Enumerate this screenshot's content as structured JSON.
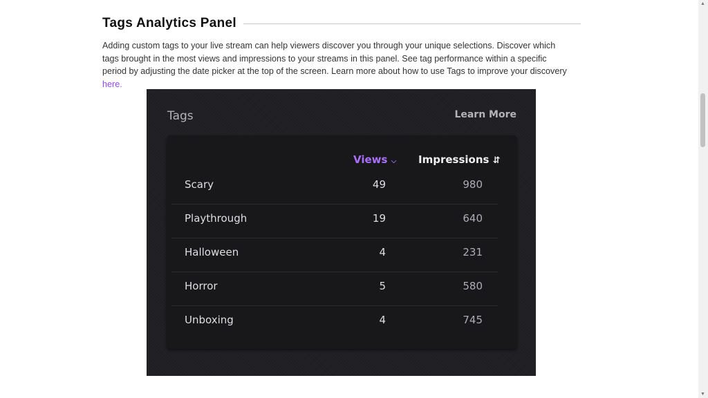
{
  "section": {
    "title": "Tags Analytics Panel",
    "description": "Adding custom tags to your live stream can help viewers discover you through your unique selections. Discover which tags brought in the most views and impressions to your streams in this panel. See tag performance within a specific period by adjusting the date picker at the top of the screen. Learn more about how to use Tags to improve your discovery ",
    "link_text": "here."
  },
  "panel": {
    "title": "Tags",
    "learn_more": "Learn More",
    "columns": {
      "views": "Views",
      "impressions": "Impressions"
    },
    "sort": {
      "column": "Views",
      "direction": "descending"
    },
    "accent_color": "#a970ff",
    "rows": [
      {
        "tag": "Scary",
        "views": "49",
        "impressions": "980"
      },
      {
        "tag": "Playthrough",
        "views": "19",
        "impressions": "640"
      },
      {
        "tag": "Halloween",
        "views": "4",
        "impressions": "231"
      },
      {
        "tag": "Horror",
        "views": "5",
        "impressions": "580"
      },
      {
        "tag": "Unboxing",
        "views": "4",
        "impressions": "745"
      }
    ]
  }
}
